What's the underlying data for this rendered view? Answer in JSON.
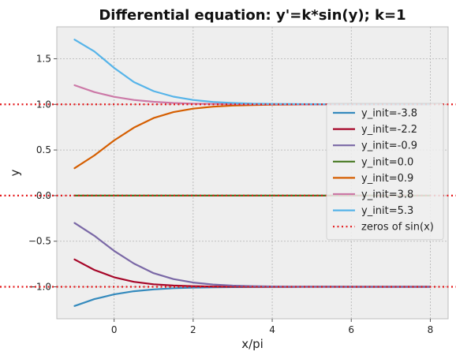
{
  "chart_data": {
    "type": "line",
    "title": "Differential equation: y'=k*sin(y); k=1",
    "xlabel": "x/pi",
    "ylabel": "y",
    "xlim": [
      -1.45,
      8.45
    ],
    "ylim": [
      -1.35,
      1.85
    ],
    "x_ticks": [
      0,
      2,
      4,
      6,
      8
    ],
    "x_tick_labels": [
      "0",
      "2",
      "4",
      "6",
      "8"
    ],
    "y_ticks": [
      -1.0,
      -0.5,
      0.0,
      0.5,
      1.0,
      1.5
    ],
    "y_tick_labels": [
      "−1.0",
      "−0.5",
      "0.0",
      "0.5",
      "1.0",
      "1.5"
    ],
    "grid": true,
    "legend_position": "center-right",
    "x": [
      -1,
      -0.5,
      0,
      0.5,
      1,
      1.5,
      2,
      2.5,
      3,
      3.5,
      4,
      4.5,
      5,
      5.5,
      6,
      6.5,
      7,
      7.5,
      8
    ],
    "series": [
      {
        "name": "y_init=-3.8",
        "color": "#348abd",
        "values": [
          -1.21,
          -1.135,
          -1.083,
          -1.048,
          -1.028,
          -1.015,
          -1.008,
          -1.005,
          -1.003,
          -1.002,
          -1.001,
          -1.001,
          -1.0,
          -1.0,
          -1.0,
          -1.0,
          -1.0,
          -1.0,
          -1.0
        ]
      },
      {
        "name": "y_init=-2.2",
        "color": "#a60628",
        "values": [
          -0.7,
          -0.815,
          -0.895,
          -0.945,
          -0.972,
          -0.986,
          -0.993,
          -0.997,
          -0.998,
          -0.999,
          -1.0,
          -1.0,
          -1.0,
          -1.0,
          -1.0,
          -1.0,
          -1.0,
          -1.0,
          -1.0
        ]
      },
      {
        "name": "y_init=-0.9",
        "color": "#7a68a6",
        "values": [
          -0.3,
          -0.44,
          -0.605,
          -0.745,
          -0.85,
          -0.915,
          -0.953,
          -0.975,
          -0.987,
          -0.993,
          -0.996,
          -0.998,
          -0.999,
          -0.999,
          -1.0,
          -1.0,
          -1.0,
          -1.0,
          -1.0
        ]
      },
      {
        "name": "y_init=0.0",
        "color": "#467821",
        "values": [
          0,
          0,
          0,
          0,
          0,
          0,
          0,
          0,
          0,
          0,
          0,
          0,
          0,
          0,
          0,
          0,
          0,
          0,
          0
        ]
      },
      {
        "name": "y_init=0.9",
        "color": "#d55e00",
        "values": [
          0.3,
          0.44,
          0.605,
          0.745,
          0.85,
          0.915,
          0.953,
          0.975,
          0.987,
          0.993,
          0.996,
          0.998,
          0.999,
          0.999,
          1.0,
          1.0,
          1.0,
          1.0,
          1.0
        ]
      },
      {
        "name": "y_init=3.8",
        "color": "#cc79a7",
        "values": [
          1.21,
          1.135,
          1.083,
          1.048,
          1.028,
          1.015,
          1.008,
          1.005,
          1.003,
          1.002,
          1.001,
          1.001,
          1.0,
          1.0,
          1.0,
          1.0,
          1.0,
          1.0,
          1.0
        ]
      },
      {
        "name": "y_init=5.3",
        "color": "#56b4e9",
        "values": [
          1.71,
          1.58,
          1.4,
          1.245,
          1.145,
          1.085,
          1.048,
          1.027,
          1.015,
          1.008,
          1.005,
          1.003,
          1.002,
          1.001,
          1.0,
          1.0,
          1.0,
          1.0,
          1.0
        ]
      }
    ],
    "reference_lines": {
      "name": "zeros of sin(x)",
      "color": "#e41a1c",
      "style": "dotted",
      "y_values": [
        -1.0,
        0.0,
        1.0
      ]
    }
  }
}
